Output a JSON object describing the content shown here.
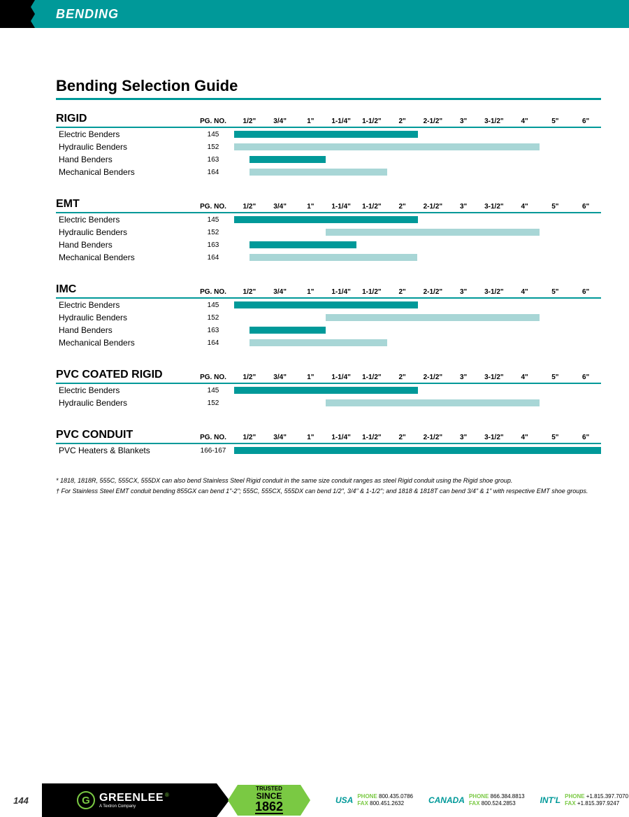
{
  "header": {
    "title": "BENDING"
  },
  "main_title": "Bending Selection Guide",
  "columns": {
    "pgno": "PG. NO."
  },
  "sizes": [
    "1/2\"",
    "3/4\"",
    "1\"",
    "1-1/4\"",
    "1-1/2\"",
    "2\"",
    "2-1/2\"",
    "3\"",
    "3-1/2\"",
    "4\"",
    "5\"",
    "6\""
  ],
  "colors": {
    "dark": "#009999",
    "light": "#a8d6d6"
  },
  "sections": [
    {
      "title": "RIGID",
      "rows": [
        {
          "label": "Electric Benders",
          "pg": "145",
          "bars": [
            {
              "from": 0,
              "to": 6,
              "color": "dark"
            }
          ]
        },
        {
          "label": "Hydraulic Benders",
          "pg": "152",
          "bars": [
            {
              "from": 0,
              "to": 10,
              "color": "light"
            }
          ]
        },
        {
          "label": "Hand Benders",
          "pg": "163",
          "bars": [
            {
              "from": 0.5,
              "to": 3,
              "color": "dark"
            }
          ]
        },
        {
          "label": "Mechanical Benders",
          "pg": "164",
          "bars": [
            {
              "from": 0.5,
              "to": 5,
              "color": "light"
            }
          ]
        }
      ]
    },
    {
      "title": "EMT",
      "rows": [
        {
          "label": "Electric Benders",
          "pg": "145",
          "bars": [
            {
              "from": 0,
              "to": 6,
              "color": "dark"
            }
          ]
        },
        {
          "label": "Hydraulic Benders",
          "pg": "152",
          "bars": [
            {
              "from": 3,
              "to": 10,
              "color": "light"
            }
          ]
        },
        {
          "label": "Hand Benders",
          "pg": "163",
          "bars": [
            {
              "from": 0.5,
              "to": 4,
              "color": "dark"
            }
          ]
        },
        {
          "label": "Mechanical Benders",
          "pg": "164",
          "bars": [
            {
              "from": 0.5,
              "to": 6,
              "color": "light"
            }
          ]
        }
      ]
    },
    {
      "title": "IMC",
      "rows": [
        {
          "label": "Electric Benders",
          "pg": "145",
          "bars": [
            {
              "from": 0,
              "to": 6,
              "color": "dark"
            }
          ]
        },
        {
          "label": "Hydraulic Benders",
          "pg": "152",
          "bars": [
            {
              "from": 3,
              "to": 10,
              "color": "light"
            }
          ]
        },
        {
          "label": "Hand Benders",
          "pg": "163",
          "bars": [
            {
              "from": 0.5,
              "to": 3,
              "color": "dark"
            }
          ]
        },
        {
          "label": "Mechanical Benders",
          "pg": "164",
          "bars": [
            {
              "from": 0.5,
              "to": 5,
              "color": "light"
            }
          ]
        }
      ]
    },
    {
      "title": "PVC COATED RIGID",
      "rows": [
        {
          "label": "Electric Benders",
          "pg": "145",
          "bars": [
            {
              "from": 0,
              "to": 6,
              "color": "dark"
            }
          ]
        },
        {
          "label": "Hydraulic Benders",
          "pg": "152",
          "bars": [
            {
              "from": 3,
              "to": 10,
              "color": "light"
            }
          ]
        }
      ]
    },
    {
      "title": "PVC CONDUIT",
      "rows": [
        {
          "label": "PVC Heaters & Blankets",
          "pg": "166-167",
          "bars": [
            {
              "from": 0,
              "to": 12,
              "color": "dark"
            }
          ]
        }
      ]
    }
  ],
  "footnotes": [
    "* 1818, 1818R, 555C, 555CX, 555DX can also bend Stainless Steel Rigid conduit in the same size conduit ranges as steel Rigid conduit using the Rigid shoe group.",
    "† For Stainless Steel EMT conduit bending 855GX can bend 1\"-2\"; 555C, 555CX, 555DX can bend 1/2\", 3/4\" & 1-1/2\"; and 1818 & 1818T can bend 3/4\" & 1\" with respective EMT shoe groups."
  ],
  "footer": {
    "page": "144",
    "logo": {
      "g": "G",
      "name": "GREENLEE",
      "sub": "A Textron Company",
      "reg": "®"
    },
    "trusted": {
      "top": "TRUSTED",
      "mid": "SINCE",
      "bot": "1862"
    },
    "contacts": [
      {
        "region": "USA",
        "phone_lbl": "PHONE",
        "phone": "800.435.0786",
        "fax_lbl": "FAX",
        "fax": "800.451.2632"
      },
      {
        "region": "CANADA",
        "phone_lbl": "PHONE",
        "phone": "866.384.8813",
        "fax_lbl": "FAX",
        "fax": "800.524.2853"
      },
      {
        "region": "INT'L",
        "phone_lbl": "PHONE",
        "phone": "+1.815.397.7070",
        "fax_lbl": "FAX",
        "fax": "+1.815.397.9247"
      }
    ]
  }
}
